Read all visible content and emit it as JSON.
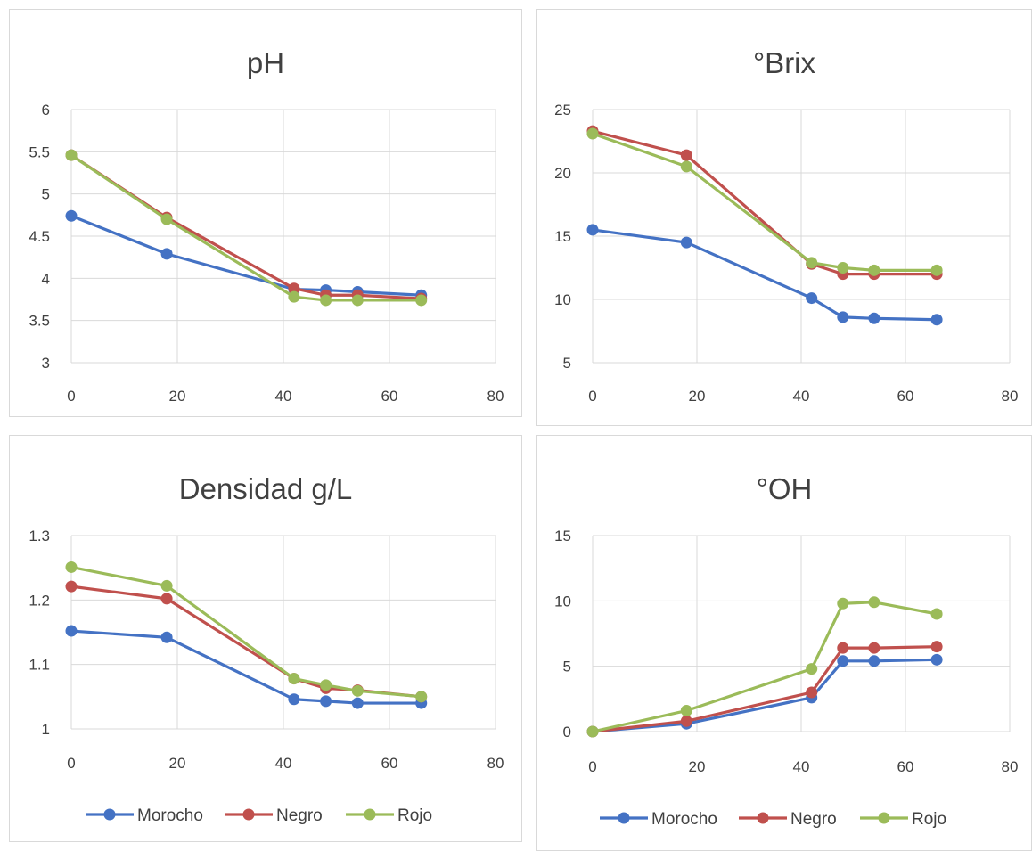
{
  "colors": {
    "Morocho": "#4472c4",
    "Negro": "#c0504d",
    "Rojo": "#9bbb59"
  },
  "chart_data": [
    {
      "type": "line",
      "title": "pH",
      "xlim": [
        0,
        80
      ],
      "ylim": [
        3,
        6
      ],
      "xticks": [
        0,
        20,
        40,
        60,
        80
      ],
      "yticks": [
        3,
        3.5,
        4,
        4.5,
        5,
        5.5,
        6
      ],
      "ytick_labels": [
        "3",
        "3.5",
        "4",
        "4.5",
        "5",
        "5.5",
        "6"
      ],
      "x": [
        0,
        18,
        42,
        48,
        54,
        66
      ],
      "grid": true,
      "legend": null,
      "series": [
        {
          "name": "Morocho",
          "values": [
            4.74,
            4.29,
            3.87,
            3.86,
            3.84,
            3.8
          ]
        },
        {
          "name": "Negro",
          "values": [
            5.46,
            4.72,
            3.88,
            3.8,
            3.8,
            3.76
          ]
        },
        {
          "name": "Rojo",
          "values": [
            5.46,
            4.7,
            3.78,
            3.74,
            3.74,
            3.74
          ]
        }
      ]
    },
    {
      "type": "line",
      "title": "°Brix",
      "xlim": [
        0,
        80
      ],
      "ylim": [
        5,
        25
      ],
      "xticks": [
        0,
        20,
        40,
        60,
        80
      ],
      "yticks": [
        5,
        10,
        15,
        20,
        25
      ],
      "ytick_labels": [
        "5",
        "10",
        "15",
        "20",
        "25"
      ],
      "x": [
        0,
        18,
        42,
        48,
        54,
        66
      ],
      "grid": true,
      "legend": null,
      "series": [
        {
          "name": "Morocho",
          "values": [
            15.5,
            14.5,
            10.1,
            8.6,
            8.5,
            8.4
          ]
        },
        {
          "name": "Negro",
          "values": [
            23.3,
            21.4,
            12.8,
            12.0,
            12.0,
            12.0
          ]
        },
        {
          "name": "Rojo",
          "values": [
            23.1,
            20.5,
            12.9,
            12.5,
            12.3,
            12.3
          ]
        }
      ]
    },
    {
      "type": "line",
      "title": "Densidad g/L",
      "xlim": [
        0,
        80
      ],
      "ylim": [
        1,
        1.3
      ],
      "xticks": [
        0,
        20,
        40,
        60,
        80
      ],
      "yticks": [
        1,
        1.1,
        1.2,
        1.3
      ],
      "ytick_labels": [
        "1",
        "1.1",
        "1.2",
        "1.3"
      ],
      "x": [
        0,
        18,
        42,
        48,
        54,
        66
      ],
      "grid": true,
      "legend": "bottom",
      "series": [
        {
          "name": "Morocho",
          "values": [
            1.152,
            1.142,
            1.046,
            1.043,
            1.04,
            1.04
          ]
        },
        {
          "name": "Negro",
          "values": [
            1.221,
            1.202,
            1.078,
            1.063,
            1.06,
            1.05
          ]
        },
        {
          "name": "Rojo",
          "values": [
            1.251,
            1.222,
            1.078,
            1.068,
            1.059,
            1.05
          ]
        }
      ]
    },
    {
      "type": "line",
      "title": "°OH",
      "xlim": [
        0,
        80
      ],
      "ylim": [
        0,
        15
      ],
      "xticks": [
        0,
        20,
        40,
        60,
        80
      ],
      "yticks": [
        0,
        5,
        10,
        15
      ],
      "ytick_labels": [
        "0",
        "5",
        "10",
        "15"
      ],
      "x": [
        0,
        18,
        42,
        48,
        54,
        66
      ],
      "grid": true,
      "legend": "bottom",
      "series": [
        {
          "name": "Morocho",
          "values": [
            0,
            0.6,
            2.6,
            5.4,
            5.4,
            5.5
          ]
        },
        {
          "name": "Negro",
          "values": [
            0,
            0.8,
            3.0,
            6.4,
            6.4,
            6.5
          ]
        },
        {
          "name": "Rojo",
          "values": [
            0,
            1.6,
            4.8,
            9.8,
            9.9,
            9.0
          ]
        }
      ]
    }
  ]
}
